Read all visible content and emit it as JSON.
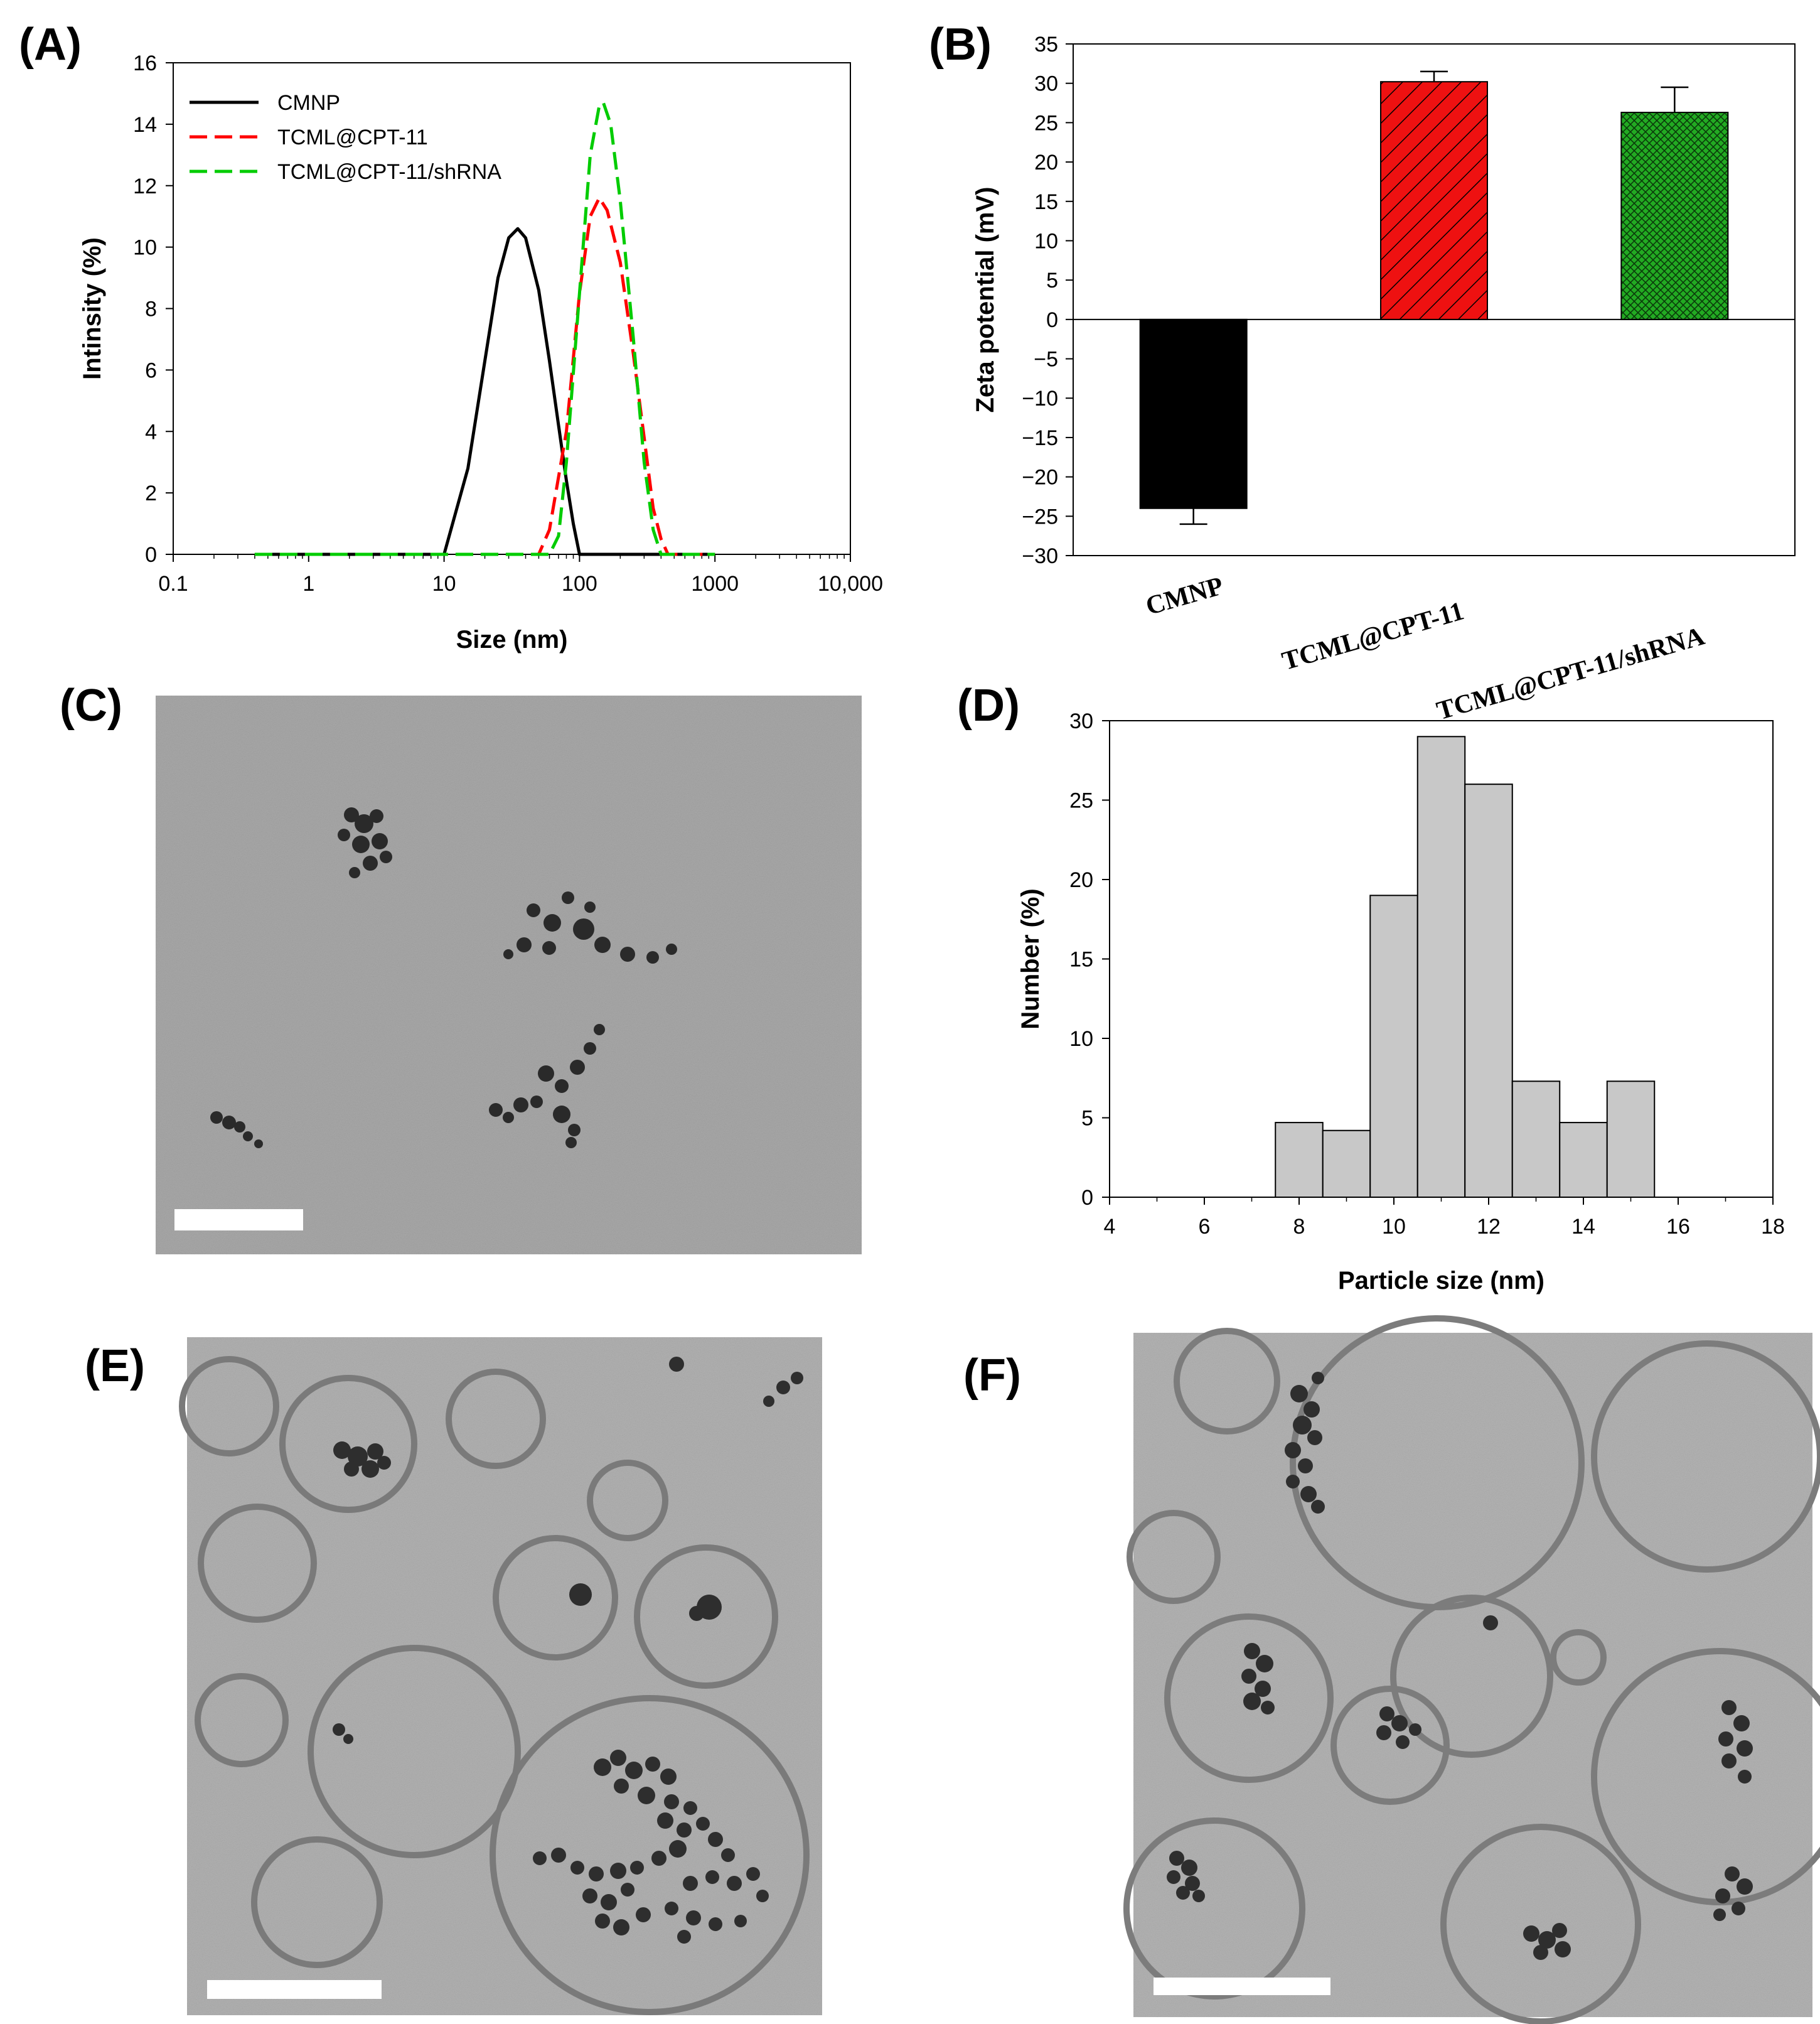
{
  "figure": {
    "panels": [
      {
        "id": "A",
        "label": "(A)"
      },
      {
        "id": "B",
        "label": "(B)"
      },
      {
        "id": "C",
        "label": "(C)"
      },
      {
        "id": "D",
        "label": "(D)"
      },
      {
        "id": "E",
        "label": "(E)"
      },
      {
        "id": "F",
        "label": "(F)"
      }
    ]
  },
  "chart_data": [
    {
      "panel": "A",
      "type": "line",
      "xlabel": "Size (nm)",
      "ylabel": "Intinsity (%)",
      "xscale": "log",
      "xlim": [
        0.1,
        10000
      ],
      "ylim": [
        0,
        16
      ],
      "xticks": [
        "0.1",
        "1",
        "10",
        "100",
        "1000",
        "10,000"
      ],
      "yticks": [
        "0",
        "2",
        "4",
        "6",
        "8",
        "10",
        "12",
        "14",
        "16"
      ],
      "legend_position": "top-left",
      "series": [
        {
          "name": "CMNP",
          "color": "#000000",
          "style": "solid",
          "x": [
            0.4,
            1,
            5,
            10,
            15,
            20,
            25,
            30,
            35,
            40,
            50,
            60,
            70,
            80,
            90,
            100,
            150,
            1000
          ],
          "y": [
            0,
            0,
            0,
            0,
            2.8,
            6.3,
            9.0,
            10.3,
            10.6,
            10.3,
            8.6,
            6.3,
            4.2,
            2.4,
            1.0,
            0,
            0,
            0
          ]
        },
        {
          "name": "TCML@CPT-11",
          "color": "#ff0000",
          "style": "dashed",
          "x": [
            0.4,
            1,
            10,
            50,
            60,
            80,
            100,
            120,
            140,
            160,
            200,
            250,
            300,
            350,
            400,
            450,
            1000
          ],
          "y": [
            0,
            0,
            0,
            0,
            0.8,
            4.0,
            8.5,
            11.0,
            11.6,
            11.2,
            9.5,
            6.5,
            3.8,
            1.5,
            0.5,
            0,
            0
          ]
        },
        {
          "name": "TCML@CPT-11/shRNA",
          "color": "#00cc00",
          "style": "dashed",
          "x": [
            0.4,
            1,
            10,
            60,
            70,
            80,
            100,
            120,
            140,
            150,
            170,
            200,
            250,
            300,
            350,
            400,
            1000
          ],
          "y": [
            0,
            0,
            0,
            0,
            0.6,
            3.0,
            8.5,
            13.0,
            14.6,
            14.7,
            14.0,
            11.5,
            7.0,
            3.0,
            0.8,
            0,
            0
          ]
        }
      ]
    },
    {
      "panel": "B",
      "type": "bar",
      "ylabel": "Zeta potential (mV)",
      "ylim": [
        -30,
        35
      ],
      "yticks": [
        "35",
        "30",
        "25",
        "20",
        "15",
        "10",
        "5",
        "0",
        "−5",
        "−10",
        "−15",
        "−20",
        "−25",
        "−30"
      ],
      "categories": [
        "CMNP",
        "TCML@CPT-11",
        "TCML@CPT-11/shRNA"
      ],
      "values": [
        -24,
        30.2,
        26.3
      ],
      "errors": [
        2.0,
        1.3,
        3.2
      ],
      "colors": [
        "#000000",
        "#ee1111",
        "#22aa22"
      ],
      "patterns": [
        "solid",
        "diagonal-hatch",
        "crosshatch"
      ]
    },
    {
      "panel": "D",
      "type": "bar",
      "xlabel": "Particle size (nm)",
      "ylabel": "Number (%)",
      "xlim": [
        4,
        18
      ],
      "ylim": [
        0,
        30
      ],
      "xticks": [
        "4",
        "6",
        "8",
        "10",
        "12",
        "14",
        "16",
        "18"
      ],
      "yticks": [
        "0",
        "5",
        "10",
        "15",
        "20",
        "25",
        "30"
      ],
      "bin_width": 1,
      "bin_centers": [
        8,
        9,
        10,
        11,
        12,
        13,
        14,
        15
      ],
      "values": [
        4.7,
        4.2,
        19,
        29,
        26,
        7.3,
        4.7,
        7.3
      ],
      "color": "#c8c8c8"
    }
  ]
}
